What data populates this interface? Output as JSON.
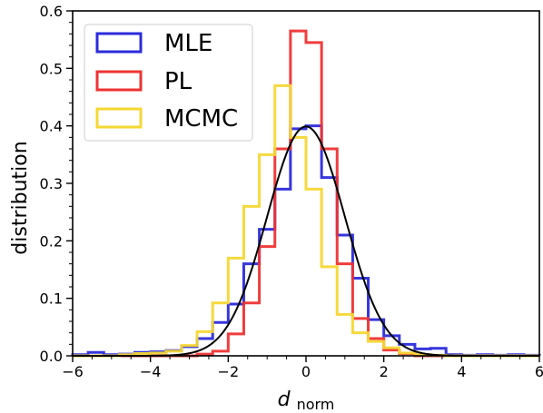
{
  "chart_data": {
    "type": "histogram",
    "xlabel_main": "d",
    "xlabel_sub": "norm",
    "ylabel": "distribution",
    "xlim": [
      -6,
      6
    ],
    "ylim": [
      0,
      0.6
    ],
    "xticks": [
      -6,
      -4,
      -2,
      0,
      2,
      4,
      6
    ],
    "xtick_labels": [
      "−6",
      "−4",
      "−2",
      "0",
      "2",
      "4",
      "6"
    ],
    "yticks": [
      0,
      0.1,
      0.2,
      0.3,
      0.4,
      0.5,
      0.6
    ],
    "ytick_labels": [
      "0.0",
      "0.1",
      "0.2",
      "0.3",
      "0.4",
      "0.5",
      "0.6"
    ],
    "legend_position": "top-left",
    "series": [
      {
        "name": "MLE",
        "color": "#2b2bdb",
        "bin_edges": [
          -6,
          -5.6,
          -5.2,
          -4.8,
          -4.4,
          -4.0,
          -3.6,
          -3.2,
          -2.8,
          -2.4,
          -2.0,
          -1.6,
          -1.2,
          -0.8,
          -0.4,
          0.0,
          0.4,
          0.8,
          1.2,
          1.6,
          2.0,
          2.4,
          2.8,
          3.2,
          3.6,
          4.0,
          4.4,
          4.8,
          5.2,
          5.6,
          6.0
        ],
        "values": [
          0.002,
          0.006,
          0.002,
          0.003,
          0.006,
          0.007,
          0.009,
          0.016,
          0.03,
          0.058,
          0.09,
          0.16,
          0.22,
          0.29,
          0.395,
          0.4,
          0.31,
          0.21,
          0.135,
          0.063,
          0.035,
          0.02,
          0.012,
          0.013,
          0.002,
          0.001,
          0.002,
          0.001,
          0.002,
          0.001
        ]
      },
      {
        "name": "PL",
        "color": "#ee3333",
        "bin_edges": [
          -6,
          -5.6,
          -5.2,
          -4.8,
          -4.4,
          -4.0,
          -3.6,
          -3.2,
          -2.8,
          -2.4,
          -2.0,
          -1.6,
          -1.2,
          -0.8,
          -0.4,
          0.0,
          0.4,
          0.8,
          1.2,
          1.6,
          2.0,
          2.4,
          2.8,
          3.2,
          3.6,
          4.0,
          4.4,
          4.8,
          5.2,
          5.6,
          6.0
        ],
        "values": [
          0,
          0,
          0,
          0,
          0,
          0,
          0,
          0,
          0.003,
          0.008,
          0.038,
          0.092,
          0.19,
          0.36,
          0.565,
          0.545,
          0.36,
          0.16,
          0.065,
          0.03,
          0.01,
          0.004,
          0,
          0,
          0,
          0,
          0,
          0,
          0,
          0
        ]
      },
      {
        "name": "MCMC",
        "color": "#f5d733",
        "bin_edges": [
          -6,
          -5.6,
          -5.2,
          -4.8,
          -4.4,
          -4.0,
          -3.6,
          -3.2,
          -2.8,
          -2.4,
          -2.0,
          -1.6,
          -1.2,
          -0.8,
          -0.4,
          0.0,
          0.4,
          0.8,
          1.2,
          1.6,
          2.0,
          2.4,
          2.8,
          3.2,
          3.6,
          4.0,
          4.4,
          4.8,
          5.2,
          5.6,
          6.0
        ],
        "values": [
          0,
          0,
          0,
          0.002,
          0.004,
          0.005,
          0.008,
          0.018,
          0.042,
          0.092,
          0.17,
          0.26,
          0.35,
          0.47,
          0.38,
          0.29,
          0.155,
          0.072,
          0.04,
          0.025,
          0.014,
          0.005,
          0.002,
          0.001,
          0,
          0,
          0,
          0,
          0,
          0
        ]
      }
    ],
    "reference_curve": {
      "type": "normal-pdf",
      "mean": 0,
      "std": 1,
      "color": "#000000"
    }
  }
}
